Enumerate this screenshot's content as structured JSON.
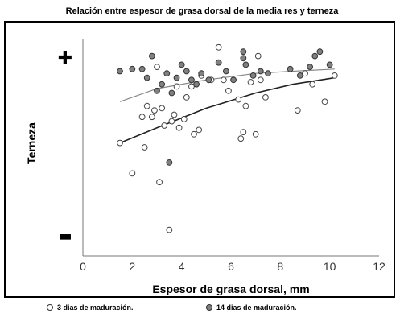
{
  "chart_data": {
    "type": "scatter",
    "title": "Relación entre espesor de grasa dorsal de la media res y terneza",
    "xlabel": "Espesor de grasa dorsal, mm",
    "ylabel": "Terneza",
    "y_top_label": "✚",
    "y_bottom_label": "▬",
    "xlim": [
      0,
      12
    ],
    "ylim": [
      0,
      100
    ],
    "xticks": [
      "0",
      "2",
      "4",
      "6",
      "8",
      "10",
      "12"
    ],
    "grid": false,
    "legend_position": "bottom",
    "series": [
      {
        "name": "3 dias de maduración.",
        "marker": "open-circle",
        "color": "#ffffff",
        "points": [
          [
            1.5,
            52
          ],
          [
            2.0,
            38
          ],
          [
            2.4,
            64
          ],
          [
            2.5,
            50
          ],
          [
            2.6,
            69
          ],
          [
            2.8,
            64
          ],
          [
            2.9,
            67
          ],
          [
            3.0,
            87
          ],
          [
            3.1,
            34
          ],
          [
            3.2,
            68
          ],
          [
            3.3,
            60
          ],
          [
            3.5,
            12
          ],
          [
            3.6,
            62
          ],
          [
            3.7,
            65
          ],
          [
            3.8,
            78
          ],
          [
            3.9,
            59
          ],
          [
            4.1,
            63
          ],
          [
            4.2,
            73
          ],
          [
            4.4,
            78
          ],
          [
            4.5,
            56
          ],
          [
            4.7,
            58
          ],
          [
            4.8,
            83
          ],
          [
            5.2,
            81
          ],
          [
            5.5,
            96
          ],
          [
            5.7,
            81
          ],
          [
            5.9,
            76
          ],
          [
            6.3,
            72
          ],
          [
            6.4,
            54
          ],
          [
            6.5,
            57
          ],
          [
            6.6,
            69
          ],
          [
            6.8,
            80
          ],
          [
            7.0,
            56
          ],
          [
            7.1,
            92
          ],
          [
            7.2,
            81
          ],
          [
            7.4,
            73
          ],
          [
            8.7,
            67
          ],
          [
            9.0,
            84
          ],
          [
            9.3,
            79
          ],
          [
            9.8,
            71
          ],
          [
            10.2,
            83
          ]
        ]
      },
      {
        "name": "14 dias de maduración.",
        "marker": "filled-circle",
        "color": "#808080",
        "points": [
          [
            1.5,
            85
          ],
          [
            2.0,
            86
          ],
          [
            2.4,
            86
          ],
          [
            2.6,
            82
          ],
          [
            2.8,
            92
          ],
          [
            3.0,
            76
          ],
          [
            3.2,
            79
          ],
          [
            3.4,
            84
          ],
          [
            3.6,
            75
          ],
          [
            3.8,
            82
          ],
          [
            4.0,
            88
          ],
          [
            4.2,
            85
          ],
          [
            4.4,
            81
          ],
          [
            4.6,
            79
          ],
          [
            4.8,
            84
          ],
          [
            5.1,
            81
          ],
          [
            5.5,
            89
          ],
          [
            5.8,
            85
          ],
          [
            6.1,
            81
          ],
          [
            6.5,
            91
          ],
          [
            6.6,
            88
          ],
          [
            6.9,
            83
          ],
          [
            7.2,
            85
          ],
          [
            7.5,
            84
          ],
          [
            8.4,
            86
          ],
          [
            8.8,
            83
          ],
          [
            9.2,
            87
          ],
          [
            9.4,
            92
          ],
          [
            9.6,
            94
          ],
          [
            10.0,
            88
          ],
          [
            6.5,
            94
          ],
          [
            3.5,
            43
          ]
        ]
      }
    ],
    "trendlines": [
      {
        "series": "3 dias de maduración.",
        "points": [
          [
            1.5,
            52
          ],
          [
            3,
            59
          ],
          [
            5,
            68
          ],
          [
            7,
            75
          ],
          [
            8.5,
            79
          ],
          [
            10.2,
            82
          ]
        ]
      },
      {
        "series": "14 dias de maduración.",
        "points": [
          [
            1.5,
            71
          ],
          [
            3,
            77
          ],
          [
            5,
            81
          ],
          [
            7,
            84
          ],
          [
            8.5,
            85
          ],
          [
            10.2,
            86
          ]
        ]
      }
    ]
  }
}
